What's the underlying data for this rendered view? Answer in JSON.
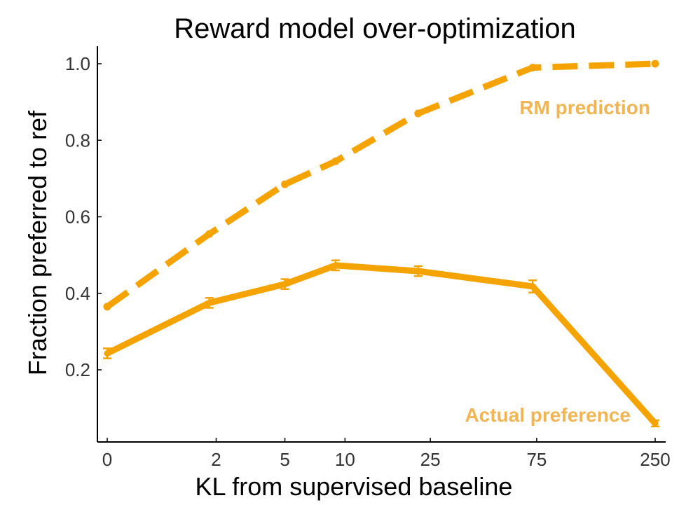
{
  "chart_data": {
    "type": "line",
    "title": "Reward model over-optimization",
    "xlabel": "KL from supervised baseline",
    "ylabel": "Fraction preferred to ref",
    "x_ticks": [
      "0",
      "2",
      "5",
      "10",
      "25",
      "75",
      "250"
    ],
    "y_ticks": [
      "0.2",
      "0.4",
      "0.6",
      "0.8",
      "1.0"
    ],
    "ylim": [
      0.05,
      1.05
    ],
    "grid": false,
    "colors": {
      "line": "#f5a300",
      "label": "#f2b554"
    },
    "series": [
      {
        "name": "RM prediction",
        "style": "dashed",
        "points": [
          {
            "x": 0,
            "y": 0.365
          },
          {
            "x": 1.8,
            "y": 0.555
          },
          {
            "x": 5,
            "y": 0.685
          },
          {
            "x": 9,
            "y": 0.745
          },
          {
            "x": 22,
            "y": 0.87
          },
          {
            "x": 72,
            "y": 0.99
          },
          {
            "x": 250,
            "y": 1.0
          }
        ]
      },
      {
        "name": "Actual preference",
        "style": "solid",
        "points": [
          {
            "x": 0,
            "y": 0.243,
            "err": 0.013
          },
          {
            "x": 1.8,
            "y": 0.375,
            "err": 0.013
          },
          {
            "x": 5,
            "y": 0.424,
            "err": 0.013
          },
          {
            "x": 9,
            "y": 0.473,
            "err": 0.013
          },
          {
            "x": 22,
            "y": 0.458,
            "err": 0.013
          },
          {
            "x": 72,
            "y": 0.418,
            "err": 0.016
          },
          {
            "x": 250,
            "y": 0.06,
            "err": 0.008
          }
        ]
      }
    ]
  }
}
